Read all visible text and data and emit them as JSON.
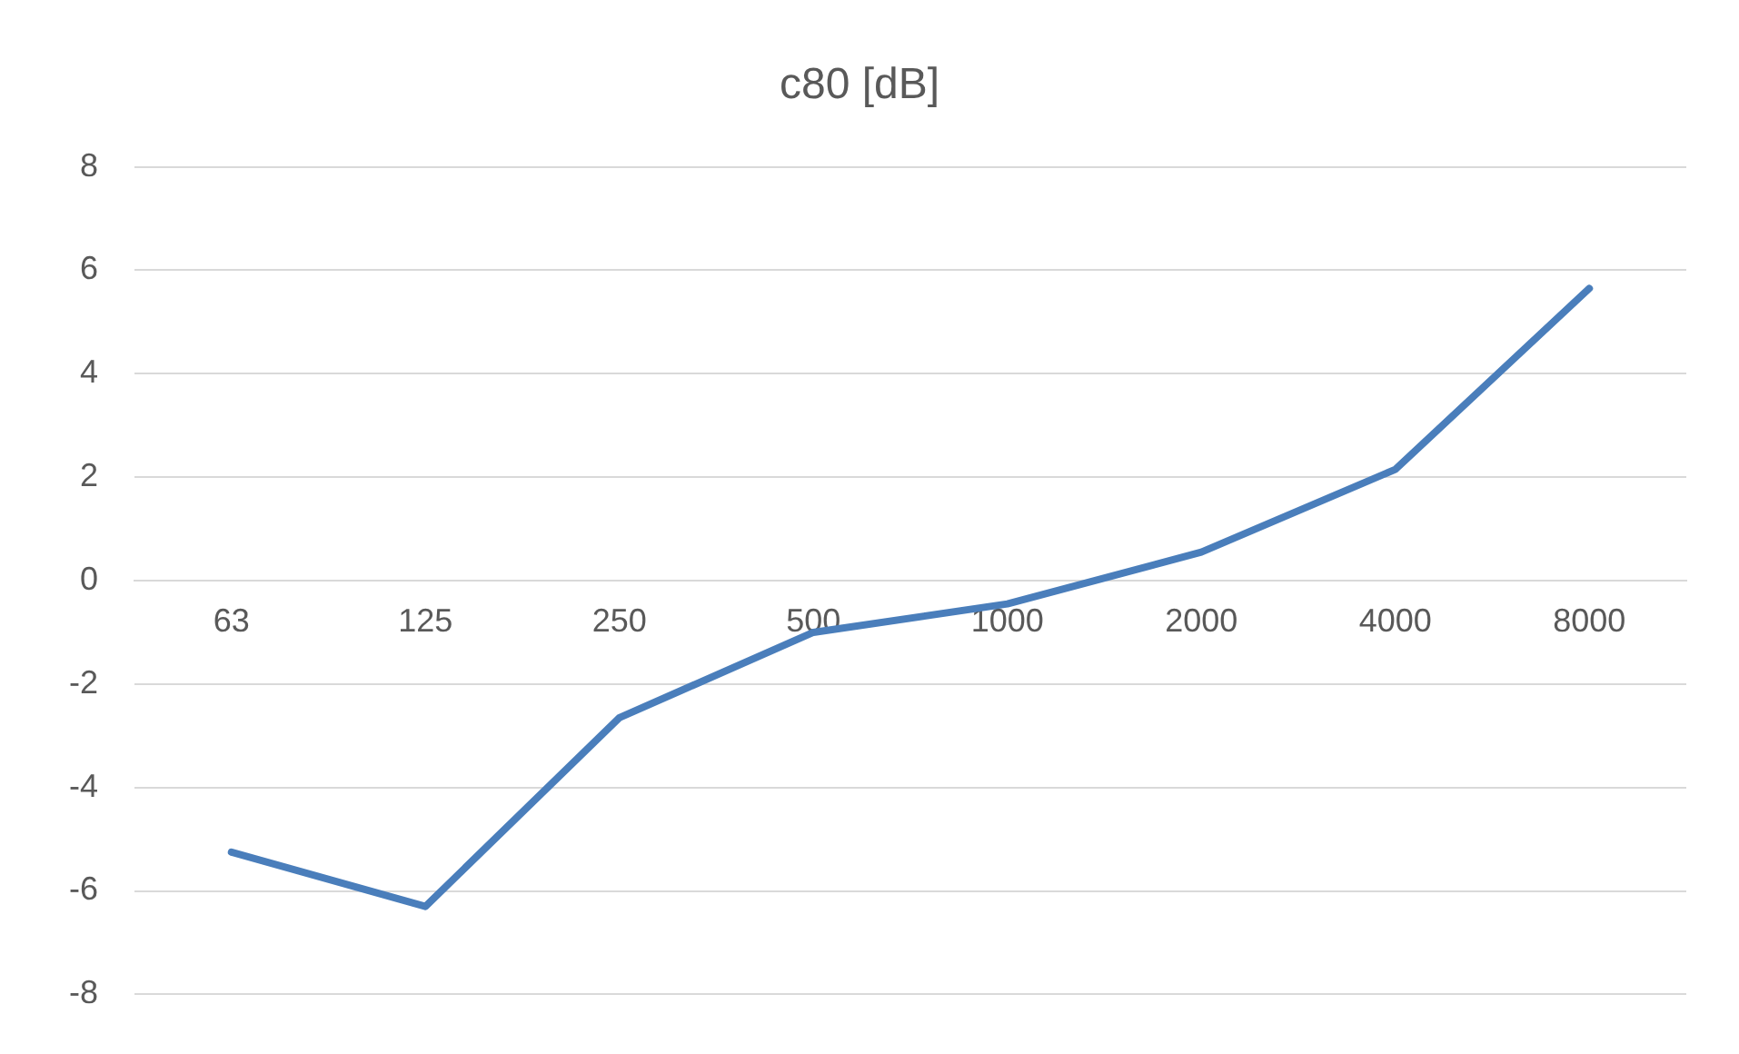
{
  "chart_data": {
    "type": "line",
    "title": "c80 [dB]",
    "categories": [
      "63",
      "125",
      "250",
      "500",
      "1000",
      "2000",
      "4000",
      "8000"
    ],
    "series": [
      {
        "color": "#4a7ebb",
        "values": [
          -5.25,
          -6.3,
          -2.65,
          -1.0,
          -0.45,
          0.55,
          2.15,
          5.65
        ]
      }
    ],
    "ylim": [
      -8,
      8
    ],
    "yticks": [
      -8,
      -6,
      -4,
      -2,
      0,
      2,
      4,
      6,
      8
    ],
    "grid": "y",
    "legend": false,
    "marker": "none",
    "line_style": "solid"
  }
}
